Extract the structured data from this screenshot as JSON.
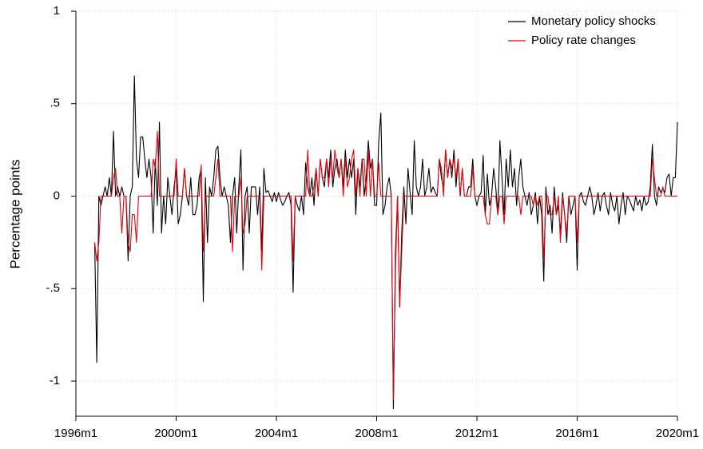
{
  "chart_data": {
    "type": "line",
    "y_label": "Percentage points",
    "x": [
      "1996m10",
      "1996m11",
      "1996m12",
      "1997m1",
      "1997m2",
      "1997m3",
      "1997m4",
      "1997m5",
      "1997m6",
      "1997m7",
      "1997m8",
      "1997m9",
      "1997m10",
      "1997m11",
      "1997m12",
      "1998m1",
      "1998m2",
      "1998m3",
      "1998m4",
      "1998m5",
      "1998m6",
      "1998m7",
      "1998m8",
      "1998m9",
      "1998m10",
      "1998m11",
      "1998m12",
      "1999m1",
      "1999m2",
      "1999m3",
      "1999m4",
      "1999m5",
      "1999m6",
      "1999m7",
      "1999m8",
      "1999m9",
      "1999m10",
      "1999m11",
      "1999m12",
      "2000m1",
      "2000m2",
      "2000m3",
      "2000m4",
      "2000m5",
      "2000m6",
      "2000m7",
      "2000m8",
      "2000m9",
      "2000m10",
      "2000m11",
      "2000m12",
      "2001m1",
      "2001m2",
      "2001m3",
      "2001m4",
      "2001m5",
      "2001m6",
      "2001m7",
      "2001m8",
      "2001m9",
      "2001m10",
      "2001m11",
      "2001m12",
      "2002m1",
      "2002m2",
      "2002m3",
      "2002m4",
      "2002m5",
      "2002m6",
      "2002m7",
      "2002m8",
      "2002m9",
      "2002m10",
      "2002m11",
      "2002m12",
      "2003m1",
      "2003m2",
      "2003m3",
      "2003m4",
      "2003m5",
      "2003m6",
      "2003m7",
      "2003m8",
      "2003m9",
      "2003m10",
      "2003m11",
      "2003m12",
      "2004m1",
      "2004m2",
      "2004m3",
      "2004m4",
      "2004m5",
      "2004m6",
      "2004m7",
      "2004m8",
      "2004m9",
      "2004m10",
      "2004m11",
      "2004m12",
      "2005m1",
      "2005m2",
      "2005m3",
      "2005m4",
      "2005m5",
      "2005m6",
      "2005m7",
      "2005m8",
      "2005m9",
      "2005m10",
      "2005m11",
      "2005m12",
      "2006m1",
      "2006m2",
      "2006m3",
      "2006m4",
      "2006m5",
      "2006m6",
      "2006m7",
      "2006m8",
      "2006m9",
      "2006m10",
      "2006m11",
      "2006m12",
      "2007m1",
      "2007m2",
      "2007m3",
      "2007m4",
      "2007m5",
      "2007m6",
      "2007m7",
      "2007m8",
      "2007m9",
      "2007m10",
      "2007m11",
      "2007m12",
      "2008m1",
      "2008m2",
      "2008m3",
      "2008m4",
      "2008m5",
      "2008m6",
      "2008m7",
      "2008m8",
      "2008m9",
      "2008m10",
      "2008m11",
      "2008m12",
      "2009m1",
      "2009m2",
      "2009m3",
      "2009m4",
      "2009m5",
      "2009m6",
      "2009m7",
      "2009m8",
      "2009m9",
      "2009m10",
      "2009m11",
      "2009m12",
      "2010m1",
      "2010m2",
      "2010m3",
      "2010m4",
      "2010m5",
      "2010m6",
      "2010m7",
      "2010m8",
      "2010m9",
      "2010m10",
      "2010m11",
      "2010m12",
      "2011m1",
      "2011m2",
      "2011m3",
      "2011m4",
      "2011m5",
      "2011m6",
      "2011m7",
      "2011m8",
      "2011m9",
      "2011m10",
      "2011m11",
      "2011m12",
      "2012m1",
      "2012m2",
      "2012m3",
      "2012m4",
      "2012m5",
      "2012m6",
      "2012m7",
      "2012m8",
      "2012m9",
      "2012m10",
      "2012m11",
      "2012m12",
      "2013m1",
      "2013m2",
      "2013m3",
      "2013m4",
      "2013m5",
      "2013m6",
      "2013m7",
      "2013m8",
      "2013m9",
      "2013m10",
      "2013m11",
      "2013m12",
      "2014m1",
      "2014m2",
      "2014m3",
      "2014m4",
      "2014m5",
      "2014m6",
      "2014m7",
      "2014m8",
      "2014m9",
      "2014m10",
      "2014m11",
      "2014m12",
      "2015m1",
      "2015m2",
      "2015m3",
      "2015m4",
      "2015m5",
      "2015m6",
      "2015m7",
      "2015m8",
      "2015m9",
      "2015m10",
      "2015m11",
      "2015m12",
      "2016m1",
      "2016m2",
      "2016m3",
      "2016m4",
      "2016m5",
      "2016m6",
      "2016m7",
      "2016m8",
      "2016m9",
      "2016m10",
      "2016m11",
      "2016m12",
      "2017m1",
      "2017m2",
      "2017m3",
      "2017m4",
      "2017m5",
      "2017m6",
      "2017m7",
      "2017m8",
      "2017m9",
      "2017m10",
      "2017m11",
      "2017m12",
      "2018m1",
      "2018m2",
      "2018m3",
      "2018m4",
      "2018m5",
      "2018m6",
      "2018m7",
      "2018m8",
      "2018m9",
      "2018m10",
      "2018m11",
      "2018m12",
      "2019m1",
      "2019m2",
      "2019m3",
      "2019m4",
      "2019m5",
      "2019m6",
      "2019m7",
      "2019m8",
      "2019m9",
      "2019m10",
      "2019m11",
      "2019m12",
      "2020m1"
    ],
    "series": [
      {
        "name": "Monetary policy shocks",
        "color": "#000000",
        "values": [
          -0.25,
          -0.9,
          0,
          -0.05,
          0,
          0.05,
          0,
          0.1,
          0,
          0.35,
          0,
          0.05,
          0,
          0.05,
          0,
          0,
          -0.35,
          0,
          0.05,
          0.65,
          0.2,
          0.1,
          0.32,
          0.32,
          0.2,
          0.1,
          0.2,
          0.1,
          -0.2,
          0.2,
          -0.05,
          0.4,
          -0.2,
          0,
          -0.15,
          0.1,
          0,
          -0.1,
          0.05,
          0.15,
          -0.15,
          -0.1,
          0,
          0.15,
          0,
          -0.05,
          0.1,
          -0.1,
          -0.1,
          -0.05,
          0.1,
          0.15,
          -0.57,
          0.1,
          -0.25,
          0.05,
          0,
          0.1,
          0.25,
          0.27,
          0.1,
          0,
          0.05,
          0,
          -0.05,
          -0.25,
          0,
          0.1,
          -0.2,
          0.05,
          0.25,
          -0.4,
          0,
          0.05,
          -0.2,
          0.05,
          0.05,
          0.05,
          -0.1,
          0.05,
          -0.3,
          0.15,
          0.02,
          0.03,
          0,
          -0.03,
          0.02,
          -0.03,
          0.02,
          -0.02,
          -0.05,
          -0.03,
          0,
          0.02,
          -0.05,
          -0.52,
          0,
          -0.05,
          -0.08,
          0,
          -0.1,
          0.18,
          0.05,
          0,
          0.1,
          -0.05,
          0.15,
          0,
          0.2,
          0.1,
          0.05,
          0.2,
          0.1,
          0.25,
          0.05,
          0.15,
          0.2,
          0.1,
          0.2,
          0.05,
          0.25,
          0.1,
          0.2,
          0.1,
          0.2,
          -0.1,
          0.15,
          0.05,
          0.2,
          0,
          0.1,
          0.3,
          0.15,
          0.2,
          -0.05,
          -0.05,
          0.3,
          0.45,
          -0.1,
          -0.05,
          0.05,
          0.1,
          0,
          -1.15,
          -0.3,
          0,
          -0.6,
          -0.2,
          0.05,
          -0.15,
          0.15,
          0.02,
          -0.1,
          0.3,
          0.05,
          0,
          0.05,
          0.2,
          0,
          0.05,
          0.15,
          0.02,
          0.05,
          0.02,
          0,
          0.2,
          0.1,
          0.05,
          0.25,
          0.1,
          0.2,
          0.1,
          0.25,
          0.05,
          0.2,
          0,
          0.15,
          0,
          0,
          0.05,
          0.05,
          0.2,
          0,
          -0.05,
          0,
          0.02,
          0.22,
          -0.1,
          0.12,
          -0.05,
          0,
          0.15,
          0.05,
          -0.1,
          0.3,
          0.1,
          -0.1,
          0.2,
          0.05,
          0.25,
          0.05,
          0.15,
          -0.05,
          0.1,
          0.2,
          0.05,
          0,
          -0.05,
          0.02,
          -0.1,
          -0.05,
          0.02,
          -0.15,
          0,
          -0.1,
          -0.46,
          0.05,
          -0.1,
          -0.05,
          -0.2,
          0.05,
          -0.1,
          -0.05,
          -0.2,
          0.02,
          -0.1,
          -0.25,
          0,
          -0.1,
          -0.05,
          0,
          -0.4,
          0,
          0.02,
          -0.03,
          -0.05,
          0,
          0.05,
          0,
          -0.1,
          -0.05,
          0.02,
          -0.08,
          0,
          0.02,
          -0.05,
          -0.1,
          0.02,
          -0.05,
          -0.08,
          0,
          -0.15,
          -0.05,
          0.02,
          -0.1,
          0,
          -0.02,
          -0.05,
          -0.08,
          0,
          -0.05,
          -0.02,
          -0.08,
          0,
          -0.05,
          -0.03,
          0.05,
          0.28,
          0,
          -0.05,
          0.05,
          0.02,
          0.04,
          0.02,
          0.1,
          0.12,
          0,
          0.1,
          0.1,
          0.4
        ]
      },
      {
        "name": "Policy rate changes",
        "color": "#e8000b",
        "values": [
          -0.25,
          -0.35,
          -0.25,
          0,
          0,
          0,
          0,
          0,
          0,
          0.1,
          0.15,
          0,
          0,
          -0.2,
          0,
          0,
          -0.25,
          -0.3,
          -0.1,
          -0.1,
          -0.25,
          0,
          0,
          0,
          0,
          0,
          0,
          0,
          0.2,
          0.15,
          0.35,
          0,
          0,
          0,
          0,
          0,
          0,
          0,
          0,
          0.2,
          0,
          0,
          0,
          0.15,
          0,
          0,
          0,
          0,
          0,
          0,
          0,
          0.17,
          -0.3,
          0,
          0,
          0,
          0,
          0,
          0.1,
          0.2,
          0,
          0,
          0,
          0,
          0,
          0,
          -0.3,
          0,
          0,
          0,
          0.1,
          -0.2,
          -0.15,
          0,
          0,
          0,
          0,
          0,
          0,
          0,
          -0.4,
          0,
          0,
          0,
          0,
          0,
          0,
          0,
          0,
          0,
          0,
          0,
          0,
          0,
          0,
          -0.35,
          0,
          0,
          0,
          0,
          0,
          0,
          0.25,
          0,
          0,
          0.05,
          0.15,
          0,
          0.2,
          0.1,
          0.1,
          0.2,
          0.05,
          0.2,
          0.1,
          0.25,
          0.15,
          0.1,
          0.2,
          0,
          0.2,
          0.05,
          0.1,
          0.2,
          0.25,
          0,
          0.15,
          0,
          0.2,
          0.2,
          0,
          0.25,
          0,
          0.2,
          0,
          0,
          0.18,
          0,
          0,
          0,
          0,
          0,
          0,
          -1.1,
          -0.4,
          0,
          -0.6,
          -0.3,
          0,
          0,
          0,
          0,
          0,
          0,
          0,
          0,
          0,
          0,
          0,
          0,
          0,
          0,
          0,
          0,
          0,
          0.2,
          0.15,
          0,
          0.25,
          0.1,
          0.2,
          0.15,
          0.2,
          0.1,
          0.2,
          0,
          0.15,
          0,
          0,
          0,
          0,
          0.15,
          0,
          0,
          0,
          0,
          0,
          -0.1,
          -0.15,
          -0.15,
          0,
          0,
          0,
          -0.1,
          0,
          0,
          -0.15,
          0,
          0,
          0,
          0,
          0,
          0,
          0,
          -0.1,
          0,
          0,
          0,
          0,
          0,
          -0.05,
          0,
          -0.05,
          0,
          0,
          -0.35,
          0,
          0,
          -0.1,
          -0.1,
          0,
          -0.1,
          0,
          -0.25,
          0,
          -0.1,
          -0.2,
          0,
          0,
          0,
          0,
          -0.25,
          0,
          0,
          0,
          0,
          0,
          0,
          0,
          0,
          0,
          0,
          0,
          0,
          0,
          0,
          0,
          0,
          0,
          0,
          0,
          0,
          0,
          0,
          0,
          0,
          0,
          0,
          0,
          0,
          0,
          0,
          0,
          0,
          0,
          0,
          0,
          0.2,
          0.1,
          0,
          0,
          0,
          0.05,
          0,
          0,
          0,
          0,
          0,
          0,
          0
        ]
      }
    ],
    "xlim": [
      "1996m1",
      "2020m1"
    ],
    "xticks": [
      "1996m1",
      "2000m1",
      "2004m1",
      "2008m1",
      "2012m1",
      "2016m1",
      "2020m1"
    ],
    "ylim": [
      -1.19,
      1
    ],
    "yticks": [
      {
        "value": -1,
        "label": "-1"
      },
      {
        "value": -0.5,
        "label": "-.5"
      },
      0,
      {
        "value": 0.5,
        "label": ".5"
      },
      1
    ],
    "grid": true,
    "legend": "top-right"
  }
}
